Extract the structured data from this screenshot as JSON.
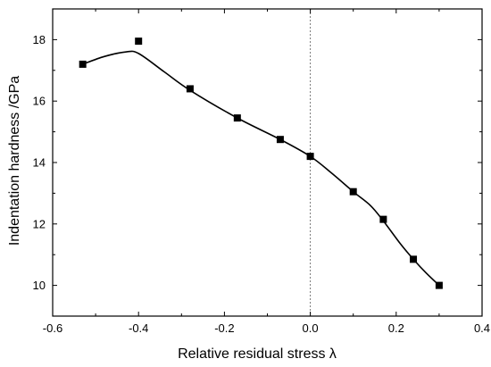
{
  "chart_data": {
    "type": "scatter",
    "title": "",
    "xlabel": "Relative residual stress  λ",
    "ylabel": "Indentation hardness  /GPa",
    "xlim": [
      -0.6,
      0.4
    ],
    "ylim": [
      9,
      19
    ],
    "x_ticks": [
      -0.6,
      -0.4,
      -0.2,
      0.0,
      0.2,
      0.4
    ],
    "x_tick_labels": [
      "-0.6",
      "-0.4",
      "-0.2",
      "0.0",
      "0.2",
      "0.4"
    ],
    "y_ticks": [
      10,
      12,
      14,
      16,
      18
    ],
    "y_tick_labels": [
      "10",
      "12",
      "14",
      "16",
      "18"
    ],
    "grid": false,
    "reference_line": {
      "orientation": "vertical",
      "x": 0.0,
      "style": "dotted"
    },
    "series": [
      {
        "kind": "markers",
        "marker": "square",
        "color": "#000000",
        "x": [
          -0.53,
          -0.4,
          -0.28,
          -0.17,
          -0.07,
          0.0,
          0.1,
          0.17,
          0.24,
          0.3
        ],
        "y": [
          17.2,
          17.95,
          16.4,
          15.45,
          14.75,
          14.2,
          13.05,
          12.15,
          10.85,
          10.0
        ]
      },
      {
        "kind": "smooth-line",
        "color": "#000000",
        "x": [
          -0.53,
          -0.48,
          -0.43,
          -0.4,
          -0.34,
          -0.28,
          -0.17,
          -0.07,
          0.0,
          0.05,
          0.1,
          0.14,
          0.17,
          0.21,
          0.24,
          0.27,
          0.3
        ],
        "y": [
          17.2,
          17.45,
          17.6,
          17.55,
          16.95,
          16.35,
          15.45,
          14.75,
          14.2,
          13.65,
          13.05,
          12.6,
          12.1,
          11.35,
          10.85,
          10.4,
          10.0
        ]
      }
    ]
  }
}
